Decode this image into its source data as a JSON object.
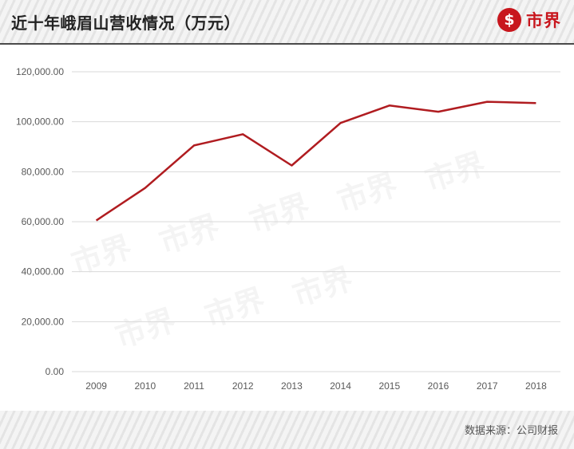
{
  "header": {
    "title": "近十年峨眉山营收情况（万元）",
    "logo_mark": "$",
    "logo_text": "市界"
  },
  "watermark": {
    "text": "市界"
  },
  "footer": {
    "source": "数据来源：公司财报"
  },
  "colors": {
    "line": "#b01c20",
    "grid": "#d9d9d9",
    "brand": "#c8161d"
  },
  "chart_data": {
    "type": "line",
    "title": "近十年峨眉山营收情况（万元）",
    "xlabel": "",
    "ylabel": "",
    "categories": [
      "2009",
      "2010",
      "2011",
      "2012",
      "2013",
      "2014",
      "2015",
      "2016",
      "2017",
      "2018"
    ],
    "series": [
      {
        "values": [
          60500,
          73500,
          90500,
          95000,
          82500,
          99500,
          106500,
          104000,
          108000,
          107500
        ]
      }
    ],
    "y_ticks": [
      "0.00",
      "20,000.00",
      "40,000.00",
      "60,000.00",
      "80,000.00",
      "100,000.00",
      "120,000.00"
    ],
    "ylim": [
      0,
      120000
    ],
    "grid": true,
    "legend": "none"
  }
}
